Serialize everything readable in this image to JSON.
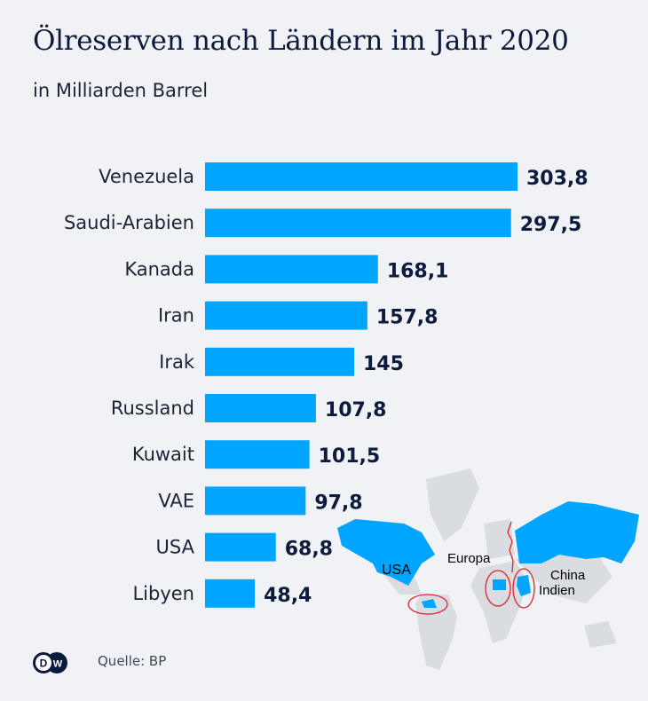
{
  "title": "Ölreserven nach Ländern im Jahr 2020",
  "subtitle": "in Milliarden Barrel",
  "source": "Quelle: BP",
  "logo_text": "DW",
  "colors": {
    "bar": "#00a5ff",
    "text": "#0c1a3d",
    "background": "#f1f2f5",
    "map_land": "#d9dde2",
    "highlight_outline": "#e0202a"
  },
  "map": {
    "labels": [
      "USA",
      "Europa",
      "China",
      "Indien"
    ]
  },
  "chart_data": {
    "type": "bar",
    "orientation": "horizontal",
    "title": "Ölreserven nach Ländern im Jahr 2020",
    "subtitle": "in Milliarden Barrel",
    "categories": [
      "Venezuela",
      "Saudi-Arabien",
      "Kanada",
      "Iran",
      "Irak",
      "Russland",
      "Kuwait",
      "VAE",
      "USA",
      "Libyen"
    ],
    "values": [
      303.8,
      297.5,
      168.1,
      157.8,
      145,
      107.8,
      101.5,
      97.8,
      68.8,
      48.4
    ],
    "value_labels": [
      "303,8",
      "297,5",
      "168,1",
      "157,8",
      "145",
      "107,8",
      "101,5",
      "97,8",
      "68,8",
      "48,4"
    ],
    "grid": false,
    "legend": "none"
  }
}
